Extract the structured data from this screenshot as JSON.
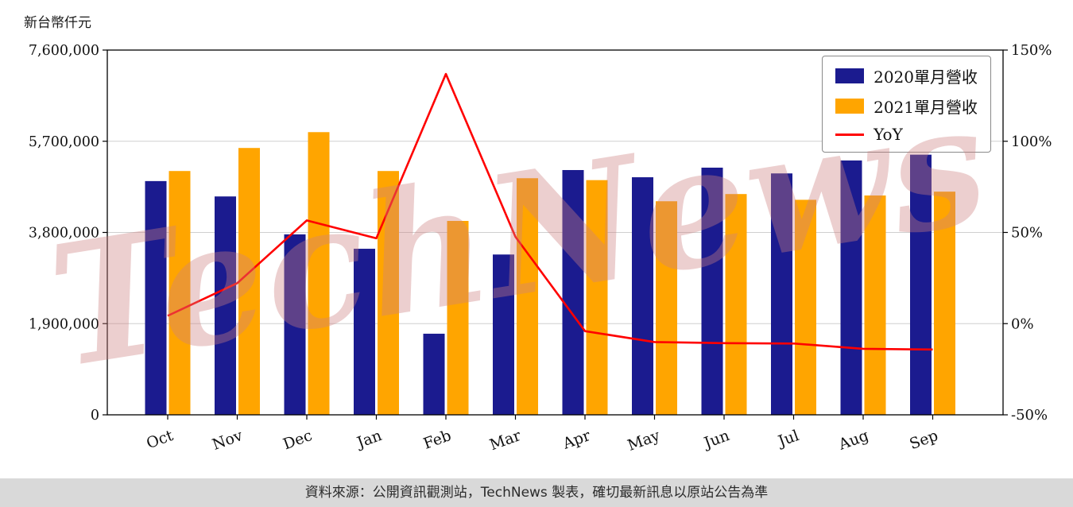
{
  "watermark": {
    "text": "TechNews"
  },
  "footer": {
    "text": "資料來源：公開資訊觀測站，TechNews 製表，確切最新訊息以原站公告為準"
  },
  "chart_data": {
    "type": "bar",
    "unit_label": "新台幣仟元",
    "categories": [
      "Oct",
      "Nov",
      "Dec",
      "Jan",
      "Feb",
      "Mar",
      "Apr",
      "May",
      "Jun",
      "Jul",
      "Aug",
      "Sep"
    ],
    "series": [
      {
        "name": "2020單月營收",
        "kind": "bar",
        "axis": "left",
        "color": "#1b1b8f",
        "values": [
          4870000,
          4550000,
          3760000,
          3460000,
          1690000,
          3340000,
          5100000,
          4950000,
          5150000,
          5030000,
          5300000,
          5420000
        ]
      },
      {
        "name": "2021單月營收",
        "kind": "bar",
        "axis": "left",
        "color": "#ffa500",
        "values": [
          5080000,
          5560000,
          5890000,
          5080000,
          4040000,
          4930000,
          4890000,
          4450000,
          4600000,
          4480000,
          4570000,
          4650000
        ]
      },
      {
        "name": "YoY",
        "kind": "line",
        "axis": "right",
        "color": "#ff0000",
        "values": [
          4.3,
          22.2,
          56.6,
          46.8,
          136.9,
          47.6,
          -4.1,
          -10.1,
          -10.7,
          -10.9,
          -13.8,
          -14.2
        ]
      }
    ],
    "left_axis": {
      "min": 0,
      "max": 7600000,
      "tick_values": [
        0,
        1900000,
        3800000,
        5700000,
        7600000
      ],
      "tick_labels": [
        "0",
        "1,900,000",
        "3,800,000",
        "5,700,000",
        "7,600,000"
      ]
    },
    "right_axis": {
      "min": -50,
      "max": 150,
      "tick_values": [
        -50,
        0,
        50,
        100,
        150
      ],
      "tick_labels": [
        "-50%",
        "0%",
        "50%",
        "100%",
        "150%"
      ]
    },
    "legend_position": "top-right",
    "grid": true
  }
}
